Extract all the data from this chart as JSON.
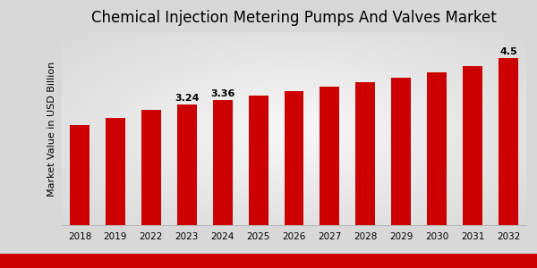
{
  "title": "Chemical Injection Metering Pumps And Valves Market",
  "ylabel": "Market Value in USD Billion",
  "years": [
    "2018",
    "2019",
    "2022",
    "2023",
    "2024",
    "2025",
    "2026",
    "2027",
    "2028",
    "2029",
    "2030",
    "2031",
    "2032"
  ],
  "values": [
    2.7,
    2.88,
    3.1,
    3.24,
    3.36,
    3.5,
    3.6,
    3.72,
    3.84,
    3.97,
    4.12,
    4.28,
    4.5
  ],
  "bar_color": "#cc0000",
  "bar_labels": [
    null,
    null,
    null,
    "3.24",
    "3.36",
    null,
    null,
    null,
    null,
    null,
    null,
    null,
    "4.5"
  ],
  "title_fontsize": 12,
  "label_fontsize": 8,
  "ylabel_fontsize": 8,
  "tick_fontsize": 7.5,
  "ylim": [
    0,
    5.2
  ],
  "bottom_stripe_color": "#cc0000",
  "bg_color_light": "#f0f0f0",
  "bg_color_dark": "#d8d8d8"
}
